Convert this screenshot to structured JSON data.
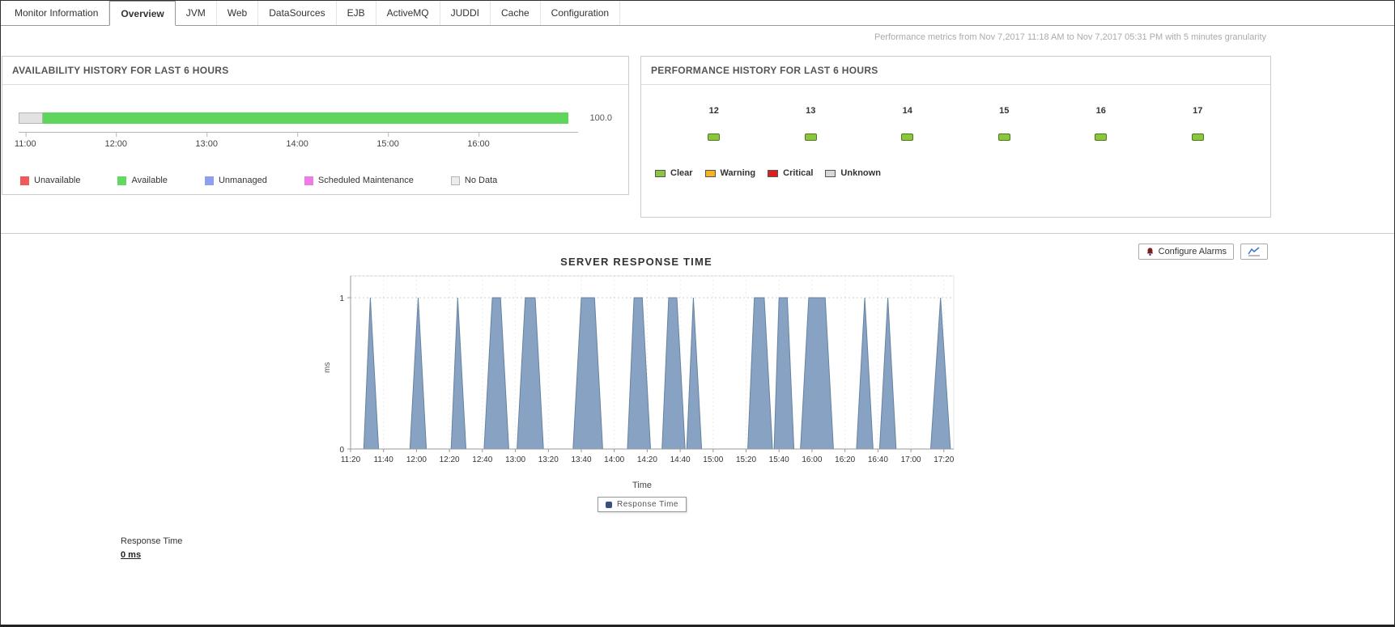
{
  "tabs": [
    {
      "label": "Monitor Information",
      "active": false
    },
    {
      "label": "Overview",
      "active": true
    },
    {
      "label": "JVM",
      "active": false
    },
    {
      "label": "Web",
      "active": false
    },
    {
      "label": "DataSources",
      "active": false
    },
    {
      "label": "EJB",
      "active": false
    },
    {
      "label": "ActiveMQ",
      "active": false
    },
    {
      "label": "JUDDI",
      "active": false
    },
    {
      "label": "Cache",
      "active": false
    },
    {
      "label": "Configuration",
      "active": false
    }
  ],
  "metrics_note": "Performance metrics from Nov 7,2017 11:18 AM to Nov 7,2017 05:31 PM with 5 minutes granularity",
  "availability_panel": {
    "title": "AVAILABILITY HISTORY FOR LAST 6 HOURS",
    "value_label": "100.0",
    "bar_segments": [
      {
        "name": "no-data",
        "color": "#e2e2e2",
        "border": "#b5b5b5",
        "percent": 4.4
      },
      {
        "name": "available",
        "color": "#5ed65e",
        "border": "",
        "percent": 95.6
      }
    ],
    "axis_ticks": [
      "11:00",
      "12:00",
      "13:00",
      "14:00",
      "15:00",
      "16:00"
    ],
    "legend": [
      {
        "label": "Unavailable",
        "color": "#f05a5a",
        "border": ""
      },
      {
        "label": "Available",
        "color": "#63d963",
        "border": ""
      },
      {
        "label": "Unmanaged",
        "color": "#8f9fee",
        "border": ""
      },
      {
        "label": "Scheduled Maintenance",
        "color": "#ee7ce4",
        "border": ""
      },
      {
        "label": "No Data",
        "color": "#ececec",
        "border": "#b5b5b5"
      }
    ]
  },
  "performance_panel": {
    "title": "PERFORMANCE HISTORY FOR LAST 6 HOURS",
    "hours": [
      {
        "label": "12",
        "status": "clear"
      },
      {
        "label": "13",
        "status": "clear"
      },
      {
        "label": "14",
        "status": "clear"
      },
      {
        "label": "15",
        "status": "clear"
      },
      {
        "label": "16",
        "status": "clear"
      },
      {
        "label": "17",
        "status": "clear"
      }
    ],
    "status_colors": {
      "clear": "#8cc63e",
      "warning": "#f5b324",
      "critical": "#dd1f1f",
      "unknown": "#d8d8d8"
    },
    "legend": [
      {
        "label": "Clear",
        "color": "#8cc63e"
      },
      {
        "label": "Warning",
        "color": "#f5b324"
      },
      {
        "label": "Critical",
        "color": "#dd1f1f"
      },
      {
        "label": "Unknown",
        "color": "#d8d8d8"
      }
    ]
  },
  "response_section": {
    "configure_alarms_label": "Configure Alarms",
    "summary_label": "Response Time",
    "summary_value": "0 ms"
  },
  "chart_data": {
    "type": "area",
    "title": "SERVER RESPONSE TIME",
    "xlabel": "Time",
    "ylabel": "ms",
    "ylim": [
      0,
      1
    ],
    "yticks": [
      0,
      1
    ],
    "x_start_time": "11:20",
    "x_tick_labels": [
      "11:20",
      "11:40",
      "12:00",
      "12:20",
      "12:40",
      "13:00",
      "13:20",
      "13:40",
      "14:00",
      "14:20",
      "14:40",
      "15:00",
      "15:20",
      "15:40",
      "16:00",
      "16:20",
      "16:40",
      "17:00",
      "17:20"
    ],
    "x_tick_minutes": [
      0,
      20,
      40,
      60,
      80,
      100,
      120,
      140,
      160,
      180,
      200,
      220,
      240,
      260,
      280,
      300,
      320,
      340,
      360
    ],
    "xlim_minutes": [
      0,
      366
    ],
    "legend_label": "Response Time",
    "legend_marker_color": "#3c4d85",
    "grid": "dotted",
    "legend_position": "bottom-center",
    "series": [
      {
        "name": "Response Time",
        "color": "#7d9abd",
        "stroke": "#66839f",
        "points": [
          [
            0,
            0
          ],
          [
            8,
            0
          ],
          [
            12,
            1
          ],
          [
            17,
            0
          ],
          [
            36,
            0
          ],
          [
            41,
            1
          ],
          [
            46,
            0
          ],
          [
            61,
            0
          ],
          [
            65,
            1
          ],
          [
            70,
            0
          ],
          [
            81,
            0
          ],
          [
            86,
            1
          ],
          [
            91,
            1
          ],
          [
            96,
            0
          ],
          [
            101,
            0
          ],
          [
            106,
            1
          ],
          [
            112,
            1
          ],
          [
            117,
            0
          ],
          [
            135,
            0
          ],
          [
            140,
            1
          ],
          [
            148,
            1
          ],
          [
            153,
            0
          ],
          [
            168,
            0
          ],
          [
            172,
            1
          ],
          [
            177,
            1
          ],
          [
            182,
            0
          ],
          [
            189,
            0
          ],
          [
            193,
            1
          ],
          [
            198,
            1
          ],
          [
            203,
            0
          ],
          [
            204,
            0
          ],
          [
            208,
            1
          ],
          [
            213,
            0
          ],
          [
            241,
            0
          ],
          [
            245,
            1
          ],
          [
            251,
            1
          ],
          [
            256,
            0
          ],
          [
            257,
            0
          ],
          [
            260,
            1
          ],
          [
            265,
            1
          ],
          [
            269,
            0
          ],
          [
            273,
            0
          ],
          [
            278,
            1
          ],
          [
            288,
            1
          ],
          [
            293,
            0
          ],
          [
            307,
            0
          ],
          [
            312,
            1
          ],
          [
            317,
            0
          ],
          [
            321,
            0
          ],
          [
            326,
            1
          ],
          [
            331,
            0
          ],
          [
            352,
            0
          ],
          [
            358,
            1
          ],
          [
            364,
            0
          ],
          [
            366,
            0
          ]
        ]
      }
    ]
  }
}
